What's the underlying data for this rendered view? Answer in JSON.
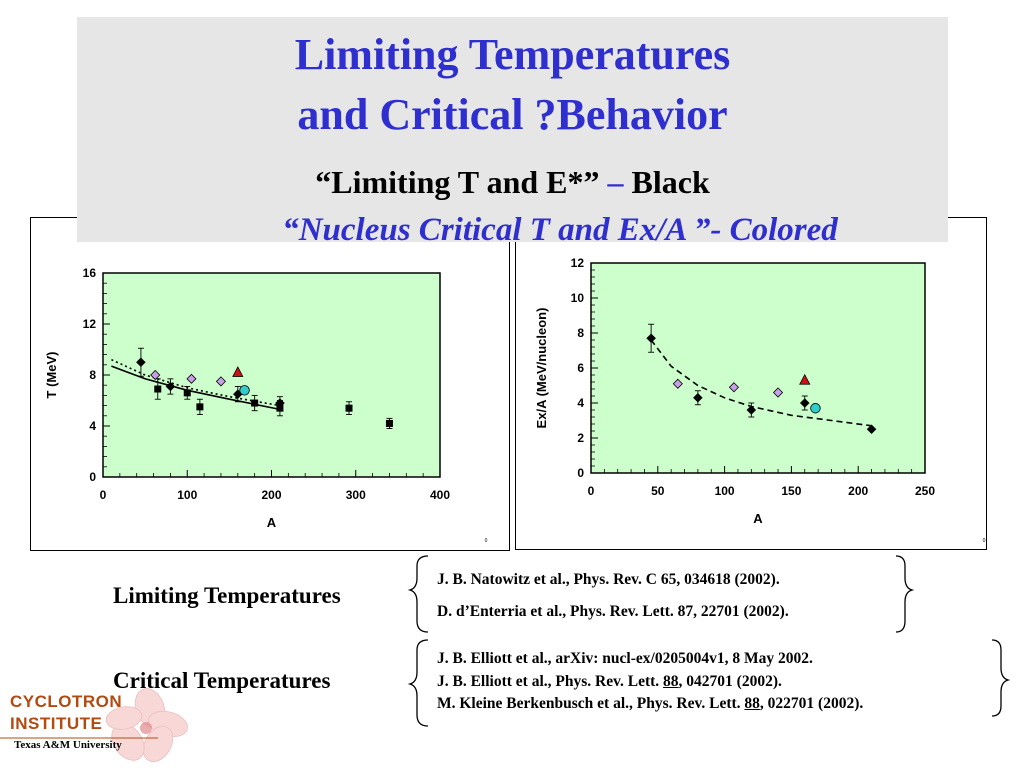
{
  "title_line1": "Limiting Temperatures",
  "title_line2": "and Critical ?Behavior",
  "subtitle_black_quote": "“Limiting T and E*”",
  "subtitle_black_dash": " – ",
  "subtitle_black_word": "Black",
  "subtitle_colored": "“Nucleus Critical T and Ex/A ”- Colored",
  "colors": {
    "title_blue": "#2f2fd0",
    "plot_bg": "#ccffcc",
    "red_marker": "#d01010",
    "violet_marker": "#c9a0e8",
    "cyan_marker": "#33cccc",
    "logo_orange": "#b34a12"
  },
  "corner_mark_left": "0",
  "corner_mark_right": "0",
  "refs": {
    "limiting_label": "Limiting Temperatures",
    "critical_label": "Critical Temperatures",
    "limiting_1": "J. B. Natowitz et al., Phys. Rev. C 65, 034618 (2002).",
    "limiting_2": "D. d’Enterria et al., Phys. Rev. Lett.  87, 22701 (2002).",
    "critical_1": "J. B. Elliott et al., arXiv:  nucl-ex/0205004v1, 8 May 2002.",
    "critical_2_pre": "J. B. Elliott et al., Phys. Rev. Lett. ",
    "critical_2_vol": "88",
    "critical_2_post": ", 042701 (2002).",
    "critical_3_pre": "M. Kleine Berkenbusch et al., Phys. Rev. Lett. ",
    "critical_3_vol": "88",
    "critical_3_post": ", 022701 (2002)."
  },
  "logo": {
    "line1": "CYCLOTRON",
    "line2": "INSTITUTE",
    "line3": "Texas A&M University"
  },
  "chart_data": [
    {
      "type": "scatter",
      "title": "",
      "xlabel": "A",
      "ylabel": "T (MeV)",
      "xlim": [
        0,
        400
      ],
      "ylim": [
        0,
        16
      ],
      "xticks": [
        "0",
        "100",
        "200",
        "300",
        "400"
      ],
      "xtick_values": [
        0,
        100,
        200,
        300,
        400
      ],
      "yticks": [
        "0",
        "4",
        "8",
        "12",
        "16"
      ],
      "ytick_values": [
        0,
        4,
        8,
        12,
        16
      ],
      "grid": false,
      "series": [
        {
          "marker": "diamond",
          "color": "#000000",
          "points": [
            [
              45,
              9.0,
              1.1
            ],
            [
              80,
              7.1,
              0.6
            ],
            [
              160,
              6.5,
              0.6
            ],
            [
              210,
              5.8,
              0.5
            ]
          ]
        },
        {
          "marker": "square",
          "color": "#000000",
          "points": [
            [
              65,
              6.9,
              0.8
            ],
            [
              100,
              6.6,
              0.5
            ],
            [
              115,
              5.5,
              0.6
            ],
            [
              180,
              5.8,
              0.6
            ],
            [
              210,
              5.4,
              0.6
            ],
            [
              292,
              5.4,
              0.5
            ],
            [
              340,
              4.2,
              0.4
            ]
          ]
        },
        {
          "marker": "diamond",
          "color": "#c9a0e8",
          "points": [
            [
              62,
              8.0
            ],
            [
              105,
              7.7
            ],
            [
              140,
              7.5
            ]
          ]
        },
        {
          "marker": "triangle",
          "color": "#d01010",
          "points": [
            [
              160,
              8.2
            ]
          ]
        },
        {
          "marker": "circle",
          "color": "#33cccc",
          "points": [
            [
              168,
              6.8
            ]
          ]
        }
      ],
      "curves": [
        {
          "style": "solid",
          "points": [
            [
              10,
              8.7
            ],
            [
              50,
              7.7
            ],
            [
              100,
              6.8
            ],
            [
              150,
              6.1
            ],
            [
              210,
              5.3
            ]
          ]
        },
        {
          "style": "dotted",
          "points": [
            [
              10,
              9.2
            ],
            [
              50,
              8.0
            ],
            [
              100,
              7.0
            ],
            [
              150,
              6.3
            ],
            [
              210,
              5.6
            ]
          ]
        }
      ]
    },
    {
      "type": "scatter",
      "title": "",
      "xlabel": "A",
      "ylabel": "Ex/A (MeV/nucleon)",
      "xlim": [
        0,
        250
      ],
      "ylim": [
        0,
        12
      ],
      "xticks": [
        "0",
        "50",
        "100",
        "150",
        "200",
        "250"
      ],
      "xtick_values": [
        0,
        50,
        100,
        150,
        200,
        250
      ],
      "yticks": [
        "0",
        "2",
        "4",
        "6",
        "8",
        "10",
        "12"
      ],
      "ytick_values": [
        0,
        2,
        4,
        6,
        8,
        10,
        12
      ],
      "grid": false,
      "series": [
        {
          "marker": "diamond",
          "color": "#000000",
          "points": [
            [
              45,
              7.7,
              0.8
            ],
            [
              80,
              4.3,
              0.4
            ],
            [
              120,
              3.6,
              0.4
            ],
            [
              160,
              4.0,
              0.4
            ],
            [
              210,
              2.5,
              0
            ]
          ]
        },
        {
          "marker": "diamond",
          "color": "#c9a0e8",
          "points": [
            [
              65,
              5.1
            ],
            [
              107,
              4.9
            ],
            [
              140,
              4.6
            ]
          ]
        },
        {
          "marker": "triangle",
          "color": "#d01010",
          "points": [
            [
              160,
              5.3
            ]
          ]
        },
        {
          "marker": "circle",
          "color": "#33cccc",
          "points": [
            [
              168,
              3.7
            ]
          ]
        }
      ],
      "curves": [
        {
          "style": "dashed",
          "points": [
            [
              45,
              7.6
            ],
            [
              60,
              6.1
            ],
            [
              80,
              5.0
            ],
            [
              100,
              4.3
            ],
            [
              120,
              3.8
            ],
            [
              150,
              3.3
            ],
            [
              180,
              3.0
            ],
            [
              210,
              2.7
            ]
          ]
        }
      ]
    }
  ]
}
